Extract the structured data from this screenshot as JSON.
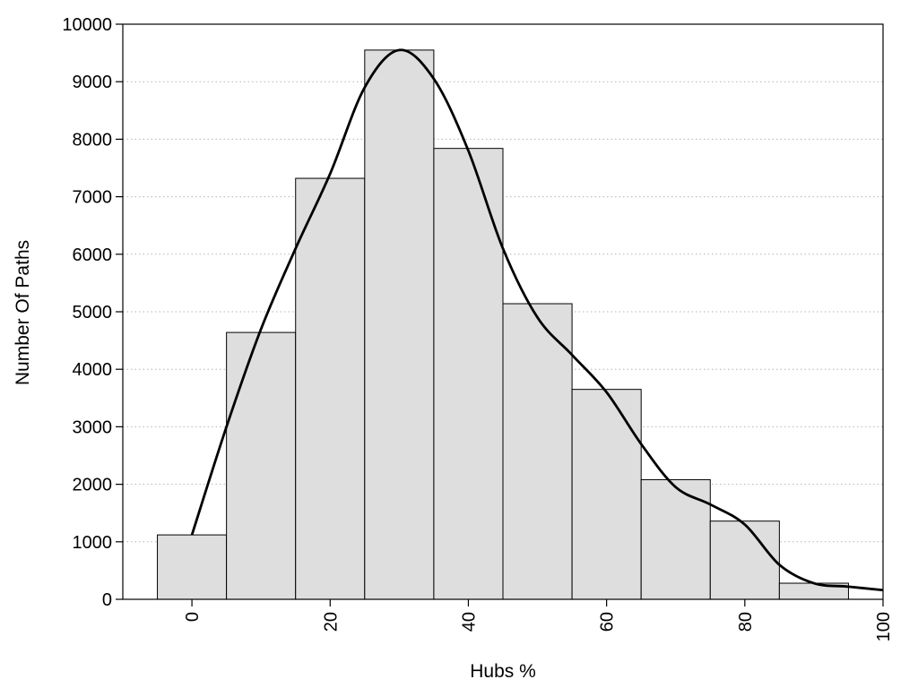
{
  "chart_data": {
    "type": "bar",
    "title": "",
    "xlabel": "Hubs %",
    "ylabel": "Number Of Paths",
    "xlim": [
      -10,
      100
    ],
    "ylim": [
      0,
      10000
    ],
    "bin_width": 10,
    "x_ticks": [
      0,
      20,
      40,
      60,
      80,
      100
    ],
    "y_ticks": [
      0,
      1000,
      2000,
      3000,
      4000,
      5000,
      6000,
      7000,
      8000,
      9000,
      10000
    ],
    "grid": "horizontal-dotted",
    "bars": {
      "x": [
        0,
        10,
        20,
        30,
        40,
        50,
        60,
        70,
        80,
        90
      ],
      "values": [
        1120,
        4640,
        7320,
        9550,
        7840,
        5140,
        3650,
        2080,
        1360,
        280
      ]
    },
    "density_curve": {
      "x": [
        0,
        5,
        10,
        15,
        20,
        25,
        30,
        35,
        40,
        45,
        50,
        55,
        60,
        65,
        70,
        75,
        80,
        85,
        90,
        95,
        100
      ],
      "y": [
        1120,
        3000,
        4700,
        6100,
        7400,
        8900,
        9550,
        9050,
        7800,
        6100,
        4900,
        4250,
        3600,
        2700,
        1950,
        1650,
        1300,
        600,
        280,
        220,
        160
      ]
    },
    "colors": {
      "bar_fill": "#dedede",
      "bar_stroke": "#000000",
      "curve": "#000000",
      "grid": "#b3b3b3"
    }
  }
}
